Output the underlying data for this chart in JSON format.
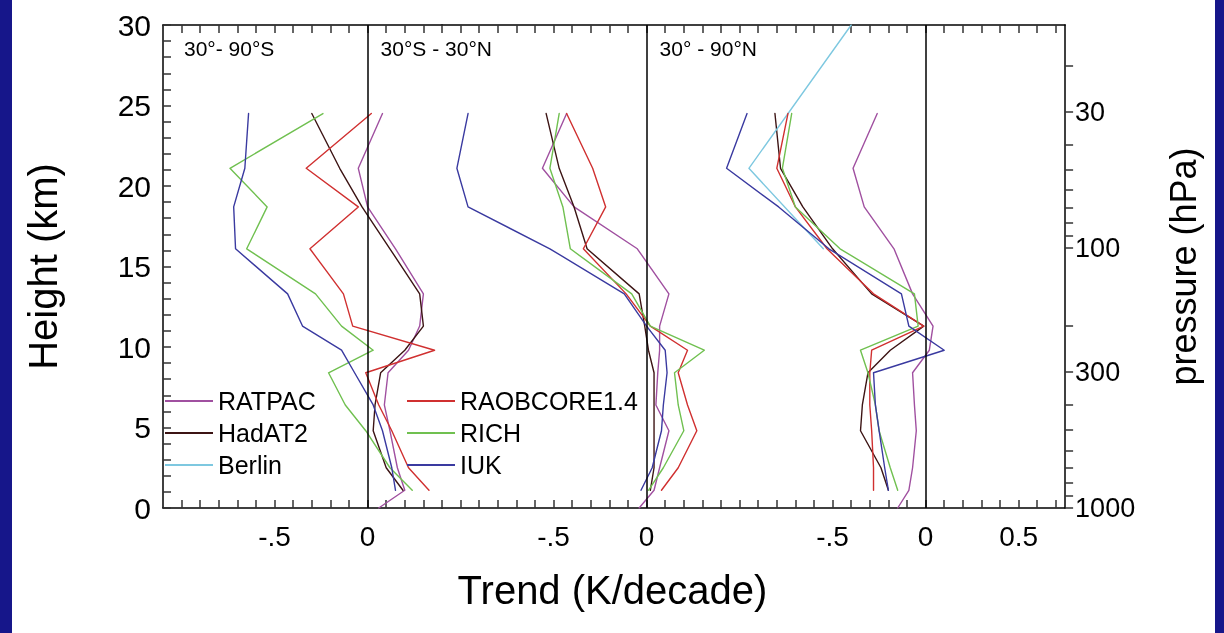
{
  "chart_data": [
    {
      "type": "line",
      "title": "30°- 90°S",
      "ylabel": "Height (km)",
      "xlim": [
        -1.1,
        0.4
      ],
      "ylim": [
        0,
        30
      ],
      "xticks": [
        {
          "value": -1.0,
          "label": null
        },
        {
          "value": -0.9,
          "label": null
        },
        {
          "value": -0.8,
          "label": null
        },
        {
          "value": -0.7,
          "label": null
        },
        {
          "value": -0.6,
          "label": null
        },
        {
          "value": -0.5,
          "label": "-.5"
        },
        {
          "value": -0.4,
          "label": null
        },
        {
          "value": -0.3,
          "label": null
        },
        {
          "value": -0.2,
          "label": null
        },
        {
          "value": -0.1,
          "label": null
        },
        {
          "value": 0,
          "label": "0"
        },
        {
          "value": 0.1,
          "label": null
        },
        {
          "value": 0.2,
          "label": null
        },
        {
          "value": 0.3,
          "label": null
        },
        {
          "value": 0.4,
          "label": null
        }
      ],
      "yticks": [
        0,
        {
          "value": 1,
          "label": null
        },
        {
          "value": 2,
          "label": null
        },
        {
          "value": 3,
          "label": null
        },
        {
          "value": 4,
          "label": null
        },
        5,
        {
          "value": 6,
          "label": null
        },
        {
          "value": 7,
          "label": null
        },
        {
          "value": 8,
          "label": null
        },
        {
          "value": 9,
          "label": null
        },
        10,
        {
          "value": 11,
          "label": null
        },
        {
          "value": 12,
          "label": null
        },
        {
          "value": 13,
          "label": null
        },
        {
          "value": 14,
          "label": null
        },
        15,
        {
          "value": 16,
          "label": null
        },
        {
          "value": 17,
          "label": null
        },
        {
          "value": 18,
          "label": null
        },
        {
          "value": 19,
          "label": null
        },
        20,
        {
          "value": 21,
          "label": null
        },
        {
          "value": 22,
          "label": null
        },
        {
          "value": 23,
          "label": null
        },
        {
          "value": 24,
          "label": null
        },
        25,
        {
          "value": 26,
          "label": null
        },
        {
          "value": 27,
          "label": null
        },
        {
          "value": 28,
          "label": null
        },
        {
          "value": 29,
          "label": null
        },
        30
      ],
      "legend": "bottom right",
      "grid": false,
      "marker": "none",
      "line_style": "solid",
      "ref_lines": [
        {
          "axis": "x",
          "value": 0,
          "color": "#000000"
        }
      ],
      "series": [
        {
          "name": "RATPAC",
          "color": "#a050a0",
          "x": [
            0.08,
            -0.05,
            0,
            0.15,
            0.3,
            0.28,
            0.22,
            0.11,
            0.09,
            0.12,
            0.16,
            0.2,
            0.06
          ],
          "values": [
            24.5,
            21.1,
            18.7,
            16.1,
            13.3,
            11.3,
            9.8,
            8.4,
            6.4,
            4.8,
            2.5,
            1.1,
            0
          ]
        },
        {
          "name": "HadAT2",
          "color": "#3c1414",
          "x": [
            -0.3,
            -0.15,
            -0.03,
            0.12,
            0.28,
            0.3,
            0.2,
            0.07,
            0.04,
            0.03,
            0.1,
            0.19
          ],
          "values": [
            24.5,
            21.1,
            18.7,
            16.1,
            13.3,
            11.3,
            9.8,
            8.4,
            6.4,
            4.8,
            2.5,
            1.1
          ]
        },
        {
          "name": "RAOBCORE1.4",
          "color": "#d03030",
          "x": [
            0.02,
            -0.33,
            -0.05,
            -0.31,
            -0.13,
            -0.08,
            0.36,
            -0.01,
            0.06,
            0.13,
            0.22,
            0.33
          ],
          "values": [
            24.5,
            21.1,
            18.7,
            16.1,
            13.3,
            11.3,
            9.8,
            8.4,
            6.4,
            4.8,
            2.5,
            1.1
          ]
        },
        {
          "name": "RICH",
          "color": "#70c050",
          "x": [
            -0.24,
            -0.74,
            -0.54,
            -0.65,
            -0.28,
            -0.14,
            0.03,
            -0.21,
            -0.12,
            -0.01,
            0.12,
            0.24
          ],
          "values": [
            24.5,
            21.1,
            18.7,
            16.1,
            13.3,
            11.3,
            9.8,
            8.4,
            6.4,
            4.8,
            2.5,
            1.1
          ]
        },
        {
          "name": "IUK",
          "color": "#3a3aa0",
          "x": [
            -0.64,
            -0.66,
            -0.72,
            -0.71,
            -0.43,
            -0.35,
            -0.14,
            -0.07,
            0.03,
            0.08,
            0.13,
            0.15
          ],
          "values": [
            24.5,
            21.1,
            18.7,
            16.1,
            13.3,
            11.3,
            9.8,
            8.4,
            6.4,
            4.8,
            2.5,
            1.1
          ]
        }
      ]
    },
    {
      "type": "line",
      "title": "30°S - 30°N",
      "xlabel": "Trend (K/decade)",
      "xlim": [
        -1.1,
        0.4
      ],
      "ylim": [
        0,
        30
      ],
      "tick_labels": "x",
      "xticks": [
        {
          "value": -1.0,
          "label": null
        },
        {
          "value": -0.9,
          "label": null
        },
        {
          "value": -0.8,
          "label": null
        },
        {
          "value": -0.7,
          "label": null
        },
        {
          "value": -0.6,
          "label": null
        },
        {
          "value": -0.5,
          "label": "-.5"
        },
        {
          "value": -0.4,
          "label": null
        },
        {
          "value": -0.3,
          "label": null
        },
        {
          "value": -0.2,
          "label": null
        },
        {
          "value": -0.1,
          "label": null
        },
        {
          "value": 0,
          "label": "0"
        },
        {
          "value": 0.1,
          "label": null
        },
        {
          "value": 0.2,
          "label": null
        },
        {
          "value": 0.3,
          "label": null
        },
        {
          "value": 0.4,
          "label": null
        }
      ],
      "grid": false,
      "marker": "none",
      "line_style": "solid",
      "ref_lines": [
        {
          "axis": "x",
          "value": 0,
          "color": "#000000"
        }
      ],
      "series": [
        {
          "name": "RATPAC",
          "color": "#a050a0",
          "x": [
            -0.43,
            -0.56,
            -0.39,
            -0.05,
            0.12,
            0.07,
            0.07,
            0.06,
            0.05,
            0.12,
            0.07,
            0.04,
            -0.04
          ],
          "values": [
            24.5,
            21.1,
            18.7,
            16.1,
            13.3,
            11.3,
            9.8,
            8.4,
            6.4,
            4.8,
            2.5,
            1.1,
            0
          ]
        },
        {
          "name": "HadAT2",
          "color": "#3c1414",
          "x": [
            -0.54,
            -0.47,
            -0.39,
            -0.32,
            -0.04,
            -0.01,
            0.01,
            0.04,
            0.04,
            0.04,
            0.04,
            0.02
          ],
          "values": [
            24.5,
            21.1,
            18.7,
            16.1,
            13.3,
            11.3,
            9.8,
            8.4,
            6.4,
            4.8,
            2.5,
            1.1
          ]
        },
        {
          "name": "RAOBCORE1.4",
          "color": "#d03030",
          "x": [
            -0.43,
            -0.29,
            -0.22,
            -0.34,
            -0.11,
            0.02,
            0.22,
            0.17,
            0.22,
            0.27,
            0.17,
            0.08
          ],
          "values": [
            24.5,
            21.1,
            18.7,
            16.1,
            13.3,
            11.3,
            9.8,
            8.4,
            6.4,
            4.8,
            2.5,
            1.1
          ]
        },
        {
          "name": "RICH",
          "color": "#70c050",
          "x": [
            -0.47,
            -0.52,
            -0.45,
            -0.41,
            -0.08,
            0.02,
            0.31,
            0.15,
            0.17,
            0.2,
            0.09,
            0.01
          ],
          "values": [
            24.5,
            21.1,
            18.7,
            16.1,
            13.3,
            11.3,
            9.8,
            8.4,
            6.4,
            4.8,
            2.5,
            1.1
          ]
        },
        {
          "name": "IUK",
          "color": "#3a3aa0",
          "x": [
            -0.96,
            -1.02,
            -0.96,
            -0.52,
            -0.12,
            0,
            0.1,
            0.11,
            0.09,
            0.08,
            0.03,
            -0.03
          ],
          "values": [
            24.5,
            21.1,
            18.7,
            16.1,
            13.3,
            11.3,
            9.8,
            8.4,
            6.4,
            4.8,
            2.5,
            1.1
          ]
        }
      ]
    },
    {
      "type": "line",
      "title": "30° - 90°N",
      "y2label": "pressure (hPa)",
      "xlim": [
        -1.1,
        0.75
      ],
      "ylim": [
        0,
        30
      ],
      "tick_labels": "x",
      "log": "y2",
      "xticks": [
        {
          "value": -1.0,
          "label": null
        },
        {
          "value": -0.9,
          "label": null
        },
        {
          "value": -0.8,
          "label": null
        },
        {
          "value": -0.7,
          "label": null
        },
        {
          "value": -0.6,
          "label": null
        },
        {
          "value": -0.5,
          "label": "-.5"
        },
        {
          "value": -0.4,
          "label": null
        },
        {
          "value": -0.3,
          "label": null
        },
        {
          "value": -0.2,
          "label": null
        },
        {
          "value": -0.1,
          "label": null
        },
        {
          "value": 0,
          "label": "0"
        },
        {
          "value": 0.1,
          "label": null
        },
        {
          "value": 0.2,
          "label": null
        },
        {
          "value": 0.3,
          "label": null
        },
        {
          "value": 0.4,
          "label": null
        },
        {
          "value": 0.5,
          "label": "0.5"
        },
        {
          "value": 0.6,
          "label": null
        },
        {
          "value": 0.7,
          "label": null
        }
      ],
      "y2lim": [
        1000,
        13.9
      ],
      "y2ticks": [
        {
          "value": 20,
          "label": null
        },
        {
          "value": 30,
          "label": "30"
        },
        {
          "value": 40,
          "label": null
        },
        {
          "value": 50,
          "label": null
        },
        {
          "value": 60,
          "label": null
        },
        {
          "value": 70,
          "label": null
        },
        {
          "value": 80,
          "label": null
        },
        {
          "value": 90,
          "label": null
        },
        {
          "value": 100,
          "label": "100"
        },
        {
          "value": 200,
          "label": null
        },
        {
          "value": 300,
          "label": "300"
        },
        {
          "value": 400,
          "label": null
        },
        {
          "value": 500,
          "label": null
        },
        {
          "value": 600,
          "label": null
        },
        {
          "value": 700,
          "label": null
        },
        {
          "value": 800,
          "label": null
        },
        {
          "value": 900,
          "label": null
        },
        {
          "value": 1000,
          "label": "1000"
        }
      ],
      "grid": false,
      "marker": "none",
      "line_style": "solid",
      "legend": "bottom left",
      "ref_lines": [
        {
          "axis": "x",
          "value": 0,
          "color": "#000000"
        }
      ],
      "series": [
        {
          "name": "RATPAC",
          "color": "#a050a0",
          "x": [
            -0.26,
            -0.39,
            -0.33,
            -0.17,
            -0.07,
            0.04,
            0.02,
            -0.07,
            -0.06,
            -0.05,
            -0.07,
            -0.09,
            -0.15
          ],
          "values": [
            24.5,
            21.1,
            18.7,
            16.1,
            13.3,
            11.3,
            9.8,
            8.4,
            6.4,
            4.8,
            2.5,
            1.1,
            0
          ]
        },
        {
          "name": "HadAT2",
          "color": "#3c1414",
          "x": [
            -0.81,
            -0.78,
            -0.66,
            -0.5,
            -0.29,
            -0.01,
            -0.19,
            -0.31,
            -0.34,
            -0.35,
            -0.24,
            -0.2
          ],
          "values": [
            24.5,
            21.1,
            18.7,
            16.1,
            13.3,
            11.3,
            9.8,
            8.4,
            6.4,
            4.8,
            2.5,
            1.1
          ]
        },
        {
          "name": "Berlin",
          "color": "#7ec8e0",
          "x": [
            -0.4,
            -0.95,
            -0.55
          ],
          "values": [
            30,
            21.1,
            16.1
          ]
        },
        {
          "name": "RAOBCORE1.4",
          "color": "#d03030",
          "x": [
            -0.74,
            -0.8,
            -0.7,
            -0.53,
            -0.28,
            -0.01,
            -0.29,
            -0.3,
            -0.3,
            -0.29,
            -0.28,
            -0.28
          ],
          "values": [
            24.5,
            21.1,
            18.7,
            16.1,
            13.3,
            11.3,
            9.8,
            8.4,
            6.4,
            4.8,
            2.5,
            1.1
          ]
        },
        {
          "name": "RICH",
          "color": "#70c050",
          "x": [
            -0.72,
            -0.77,
            -0.7,
            -0.46,
            -0.06,
            -0.04,
            -0.35,
            -0.31,
            -0.27,
            -0.25,
            -0.19,
            -0.15
          ],
          "values": [
            24.5,
            21.1,
            18.7,
            16.1,
            13.3,
            11.3,
            9.8,
            8.4,
            6.4,
            4.8,
            2.5,
            1.1
          ]
        },
        {
          "name": "IUK",
          "color": "#3a3aa0",
          "x": [
            -0.96,
            -1.07,
            -0.79,
            -0.52,
            -0.13,
            -0.09,
            0.1,
            -0.28,
            -0.27,
            -0.25,
            -0.22,
            -0.2
          ],
          "values": [
            24.5,
            21.1,
            18.7,
            16.1,
            13.3,
            11.3,
            9.8,
            8.4,
            6.4,
            4.8,
            2.5,
            1.1
          ]
        }
      ]
    }
  ]
}
